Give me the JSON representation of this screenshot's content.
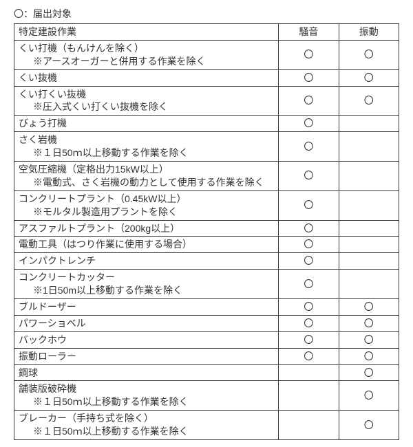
{
  "legend": "〇：届出対象",
  "headers": {
    "work": "特定建設作業",
    "noise": "騒音",
    "vibration": "振動"
  },
  "mark": "〇",
  "rows": [
    {
      "main": "くい打機（もんけんを除く）",
      "note": "※アースオーガーと併用する作業を除く",
      "noise": true,
      "vibration": true
    },
    {
      "main": "くい抜機",
      "note": "",
      "noise": true,
      "vibration": true
    },
    {
      "main": "くい打くい抜機",
      "note": "※圧入式くい打くい抜機を除く",
      "noise": true,
      "vibration": true
    },
    {
      "main": "びょう打機",
      "note": "",
      "noise": true,
      "vibration": false
    },
    {
      "main": "さく岩機",
      "note": "※１日50ｍ以上移動する作業を除く",
      "noise": true,
      "vibration": false
    },
    {
      "main": "空気圧縮機（定格出力15kW以上）",
      "note": "※電動式、さく岩機の動力として使用する作業を除く",
      "noise": true,
      "vibration": false
    },
    {
      "main": "コンクリートプラント（0.45kW以上）",
      "note": "※モルタル製造用プラントを除く",
      "noise": true,
      "vibration": false
    },
    {
      "main": "アスファルトプラント（200kg以上）",
      "note": "",
      "noise": true,
      "vibration": false
    },
    {
      "main": "電動工具（はつり作業に使用する場合）",
      "note": "",
      "noise": true,
      "vibration": false
    },
    {
      "main": "インパクトレンチ",
      "note": "",
      "noise": true,
      "vibration": false
    },
    {
      "main": "コンクリートカッター",
      "note": "※1日50m以上移動する作業を除く",
      "noise": true,
      "vibration": false
    },
    {
      "main": "ブルドーザー",
      "note": "",
      "noise": true,
      "vibration": true
    },
    {
      "main": "パワーショベル",
      "note": "",
      "noise": true,
      "vibration": true
    },
    {
      "main": "バックホウ",
      "note": "",
      "noise": true,
      "vibration": true
    },
    {
      "main": "振動ローラー",
      "note": "",
      "noise": true,
      "vibration": true
    },
    {
      "main": "鋼球",
      "note": "",
      "noise": false,
      "vibration": true
    },
    {
      "main": "舗装版破砕機",
      "note": "※１日50ｍ以上移動する作業を除く",
      "noise": false,
      "vibration": true
    },
    {
      "main": "ブレーカー（手持ち式を除く）",
      "note": "※１日50ｍ以上移動する作業を除く",
      "noise": false,
      "vibration": true
    }
  ]
}
